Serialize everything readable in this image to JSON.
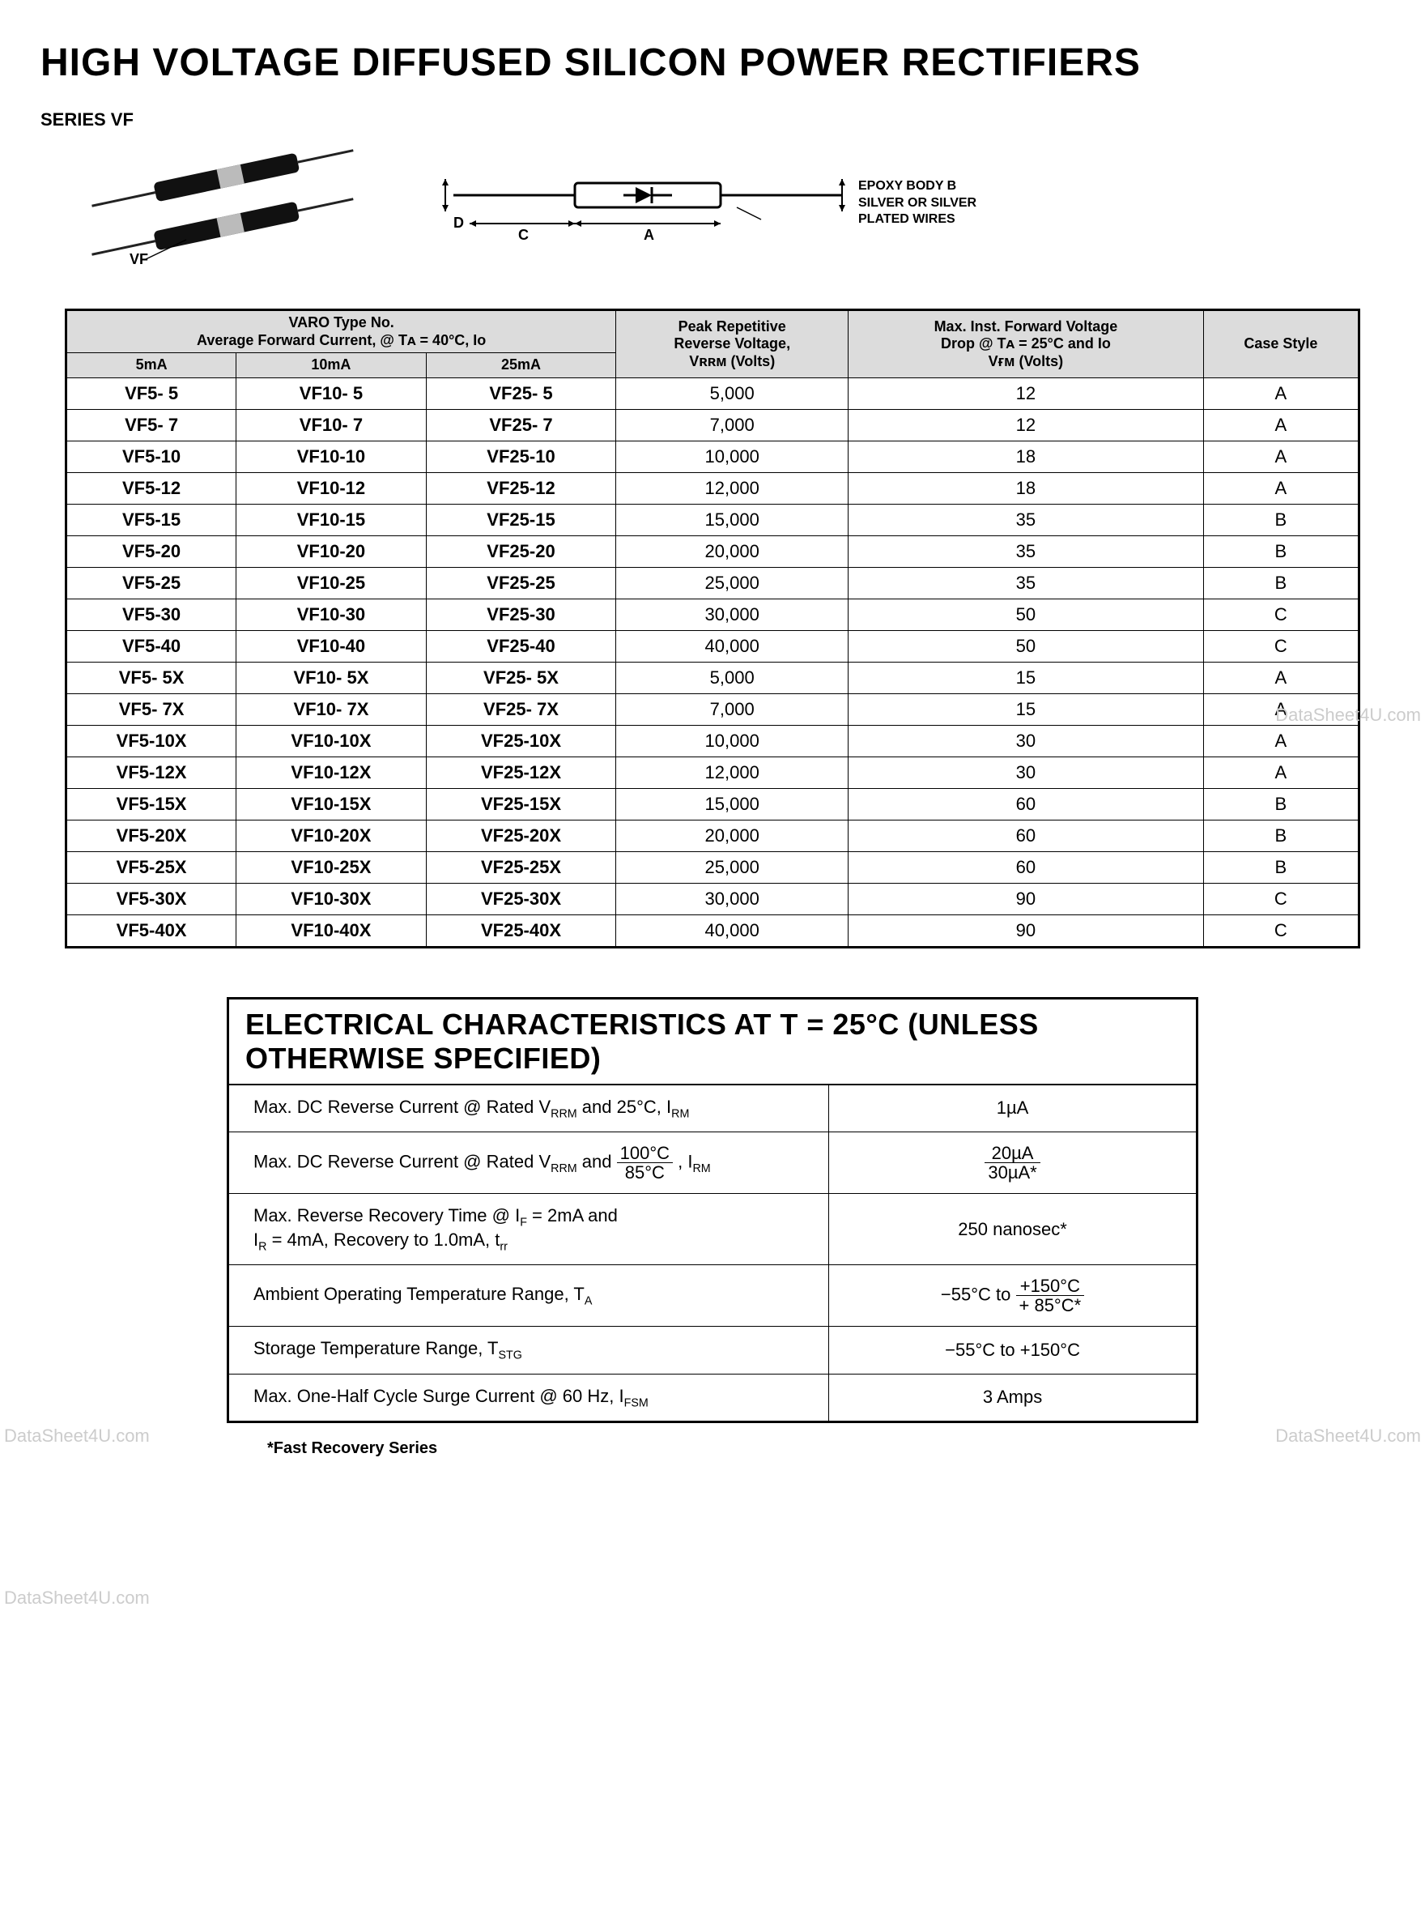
{
  "page": {
    "title": "HIGH VOLTAGE DIFFUSED SILICON POWER RECTIFIERS",
    "series_label": "SERIES  VF",
    "device_vf_label": "VF"
  },
  "dimension_diagram": {
    "label_D": "D",
    "label_C": "C",
    "label_A": "A",
    "body_text_l1": "EPOXY BODY  B",
    "body_text_l2": "SILVER OR SILVER",
    "body_text_l3": "PLATED WIRES"
  },
  "main_table": {
    "header_group_varo_l1": "VARO Type No.",
    "header_group_varo_l2": "Average Forward Current, @ Tᴀ = 40°C, Iᴏ",
    "col_5ma": "5mA",
    "col_10ma": "10mA",
    "col_25ma": "25mA",
    "col_vrrm_l1": "Peak Repetitive",
    "col_vrrm_l2": "Reverse Voltage,",
    "col_vrrm_l3": "Vʀʀᴍ (Volts)",
    "col_vfm_l1": "Max. Inst. Forward Voltage",
    "col_vfm_l2": "Drop @ Tᴀ = 25°C and Iᴏ",
    "col_vfm_l3": "Vғᴍ (Volts)",
    "col_case": "Case Style",
    "rows": [
      {
        "c0": "VF5- 5",
        "c1": "VF10- 5",
        "c2": "VF25- 5",
        "vrrm": "5,000",
        "vfm": "12",
        "case": "A"
      },
      {
        "c0": "VF5- 7",
        "c1": "VF10- 7",
        "c2": "VF25- 7",
        "vrrm": "7,000",
        "vfm": "12",
        "case": "A"
      },
      {
        "c0": "VF5-10",
        "c1": "VF10-10",
        "c2": "VF25-10",
        "vrrm": "10,000",
        "vfm": "18",
        "case": "A"
      },
      {
        "c0": "VF5-12",
        "c1": "VF10-12",
        "c2": "VF25-12",
        "vrrm": "12,000",
        "vfm": "18",
        "case": "A"
      },
      {
        "c0": "VF5-15",
        "c1": "VF10-15",
        "c2": "VF25-15",
        "vrrm": "15,000",
        "vfm": "35",
        "case": "B"
      },
      {
        "c0": "VF5-20",
        "c1": "VF10-20",
        "c2": "VF25-20",
        "vrrm": "20,000",
        "vfm": "35",
        "case": "B"
      },
      {
        "c0": "VF5-25",
        "c1": "VF10-25",
        "c2": "VF25-25",
        "vrrm": "25,000",
        "vfm": "35",
        "case": "B"
      },
      {
        "c0": "VF5-30",
        "c1": "VF10-30",
        "c2": "VF25-30",
        "vrrm": "30,000",
        "vfm": "50",
        "case": "C"
      },
      {
        "c0": "VF5-40",
        "c1": "VF10-40",
        "c2": "VF25-40",
        "vrrm": "40,000",
        "vfm": "50",
        "case": "C"
      },
      {
        "c0": "VF5- 5X",
        "c1": "VF10- 5X",
        "c2": "VF25- 5X",
        "vrrm": "5,000",
        "vfm": "15",
        "case": "A"
      },
      {
        "c0": "VF5- 7X",
        "c1": "VF10- 7X",
        "c2": "VF25- 7X",
        "vrrm": "7,000",
        "vfm": "15",
        "case": "A"
      },
      {
        "c0": "VF5-10X",
        "c1": "VF10-10X",
        "c2": "VF25-10X",
        "vrrm": "10,000",
        "vfm": "30",
        "case": "A"
      },
      {
        "c0": "VF5-12X",
        "c1": "VF10-12X",
        "c2": "VF25-12X",
        "vrrm": "12,000",
        "vfm": "30",
        "case": "A"
      },
      {
        "c0": "VF5-15X",
        "c1": "VF10-15X",
        "c2": "VF25-15X",
        "vrrm": "15,000",
        "vfm": "60",
        "case": "B"
      },
      {
        "c0": "VF5-20X",
        "c1": "VF10-20X",
        "c2": "VF25-20X",
        "vrrm": "20,000",
        "vfm": "60",
        "case": "B"
      },
      {
        "c0": "VF5-25X",
        "c1": "VF10-25X",
        "c2": "VF25-25X",
        "vrrm": "25,000",
        "vfm": "60",
        "case": "B"
      },
      {
        "c0": "VF5-30X",
        "c1": "VF10-30X",
        "c2": "VF25-30X",
        "vrrm": "30,000",
        "vfm": "90",
        "case": "C"
      },
      {
        "c0": "VF5-40X",
        "c1": "VF10-40X",
        "c2": "VF25-40X",
        "vrrm": "40,000",
        "vfm": "90",
        "case": "C"
      }
    ]
  },
  "elec_table": {
    "title": "ELECTRICAL  CHARACTERISTICS  AT  T  = 25°C  (UNLESS  OTHERWISE  SPECIFIED)",
    "rows": [
      {
        "param_html": "Max. DC Reverse Current @ Rated V<sub>RRM</sub> and 25°C, I<sub>RM</sub>",
        "value_html": "1µA"
      },
      {
        "param_html": "Max. DC Reverse Current @ Rated V<sub>RRM</sub> and <span class='frac'><span class='top'>100°C</span><span class='bot'>85°C</span></span> , I<sub>RM</sub>",
        "value_html": "<span class='frac'><span class='top'>20µA</span><span class='bot'>30µA*</span></span>"
      },
      {
        "param_html": "Max. Reverse Recovery Time @ I<sub>F</sub> = 2mA and<br>I<sub>R</sub> = 4mA, Recovery to 1.0mA, t<sub>rr</sub>",
        "value_html": "250 nanosec*"
      },
      {
        "param_html": "Ambient Operating Temperature Range, T<sub>A</sub>",
        "value_html": "−55°C to <span class='frac'><span class='top'>+150°C</span><span class='bot'>+ 85°C*</span></span>"
      },
      {
        "param_html": "Storage Temperature Range, T<sub>STG</sub>",
        "value_html": "−55°C to +150°C"
      },
      {
        "param_html": "Max. One-Half Cycle Surge Current @ 60 Hz, I<sub>FSM</sub>",
        "value_html": "3 Amps"
      }
    ]
  },
  "footnote": "*Fast Recovery Series",
  "watermarks": {
    "left1": "DataSheet4U.com",
    "left2": "DataSheet4U.com",
    "right1": "DataSheet4U.com",
    "right2": "DataSheet4U.com"
  },
  "colors": {
    "header_bg": "#dcdcdc",
    "border": "#000000",
    "text": "#000000",
    "watermark": "#cccccc"
  }
}
